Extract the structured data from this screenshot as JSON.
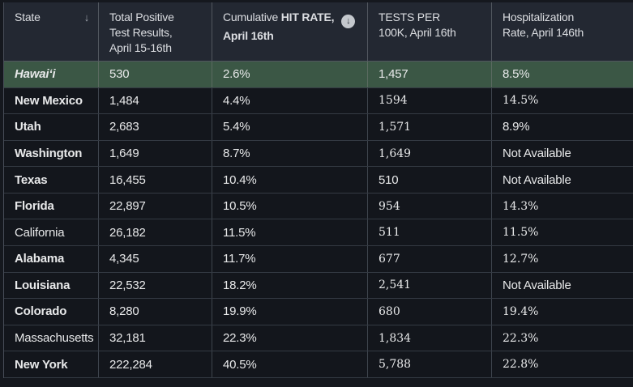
{
  "colors": {
    "page_bg": "#15181e",
    "header_bg": "#232832",
    "row_bg": "#13161c",
    "highlight_row_bg": "#3b5745",
    "header_border": "#51575f",
    "row_border_vertical": "#3e444d",
    "row_border_horizontal": "#343a43",
    "text_primary": "#e8e9ea",
    "header_text": "#dcdee2",
    "sort_arrow_color": "#9aa0a8",
    "circle_icon_bg": "#c4c8cd",
    "circle_icon_arrow": "#262b34"
  },
  "icons": {
    "sort_descending_glyph": "↓",
    "circle_sort_glyph": "↓"
  },
  "table": {
    "columns": [
      {
        "id": "state",
        "lines": [
          [
            {
              "t": "State"
            }
          ]
        ],
        "has_sort_arrow": true
      },
      {
        "id": "total_positive",
        "lines": [
          [
            {
              "t": "Total Positive"
            }
          ],
          [
            {
              "t": "Test Results,"
            }
          ],
          [
            {
              "t": "April 15-16th"
            }
          ]
        ]
      },
      {
        "id": "hit_rate",
        "lines": [
          [
            {
              "t": "Cumulative "
            },
            {
              "t": "HIT RATE,",
              "b": true
            },
            {
              "icon": "circle-arrow-down"
            }
          ],
          [
            {
              "t": "April 16th",
              "b": true
            }
          ]
        ]
      },
      {
        "id": "tests_per_100k",
        "lines": [
          [
            {
              "t": "TESTS PER"
            }
          ],
          [
            {
              "t": "100K, April 16th"
            }
          ]
        ]
      },
      {
        "id": "hospitalization_rate",
        "lines": [
          [
            {
              "t": "Hospitalization"
            }
          ],
          [
            {
              "t": "Rate, April 146th"
            }
          ]
        ]
      }
    ],
    "rows": [
      {
        "state": "Hawaiʻi",
        "state_style": "bold-italic",
        "highlighted": true,
        "cells": [
          {
            "t": "530"
          },
          {
            "t": "2.6%"
          },
          {
            "t": "1,457"
          },
          {
            "t": "8.5%"
          }
        ]
      },
      {
        "state": "New Mexico",
        "state_style": "bold",
        "highlighted": false,
        "cells": [
          {
            "t": "1,484"
          },
          {
            "t": "4.4%"
          },
          {
            "t": "1594",
            "serif": true
          },
          {
            "t": "14.5%",
            "serif": true
          }
        ]
      },
      {
        "state": "Utah",
        "state_style": "bold",
        "highlighted": false,
        "cells": [
          {
            "t": "2,683"
          },
          {
            "t": "5.4%"
          },
          {
            "t": "1,571",
            "serif": true
          },
          {
            "t": "8.9%"
          }
        ]
      },
      {
        "state": "Washington",
        "state_style": "bold",
        "highlighted": false,
        "cells": [
          {
            "t": "1,649"
          },
          {
            "t": "8.7%"
          },
          {
            "t": "1,649",
            "serif": true
          },
          {
            "t": "Not Available"
          }
        ]
      },
      {
        "state": "Texas",
        "state_style": "bold",
        "highlighted": false,
        "cells": [
          {
            "t": "16,455"
          },
          {
            "t": "10.4%"
          },
          {
            "t": "510"
          },
          {
            "t": "Not Available"
          }
        ]
      },
      {
        "state": "Florida",
        "state_style": "bold",
        "highlighted": false,
        "cells": [
          {
            "t": "22,897"
          },
          {
            "t": "10.5%"
          },
          {
            "t": "954",
            "serif": true
          },
          {
            "t": "14.3%",
            "serif": true
          }
        ]
      },
      {
        "state": "California",
        "state_style": "regular",
        "highlighted": false,
        "cells": [
          {
            "t": "26,182"
          },
          {
            "t": "11.5%"
          },
          {
            "t": "511",
            "serif": true
          },
          {
            "t": "11.5%",
            "serif": true
          }
        ]
      },
      {
        "state": "Alabama",
        "state_style": "bold",
        "highlighted": false,
        "cells": [
          {
            "t": "4,345"
          },
          {
            "t": "11.7%"
          },
          {
            "t": "677",
            "serif": true
          },
          {
            "t": "12.7%",
            "serif": true
          }
        ]
      },
      {
        "state": "Louisiana",
        "state_style": "bold",
        "highlighted": false,
        "cells": [
          {
            "t": "22,532"
          },
          {
            "t": "18.2%"
          },
          {
            "t": "2,541",
            "serif": true
          },
          {
            "t": "Not Available"
          }
        ]
      },
      {
        "state": "Colorado",
        "state_style": "bold",
        "highlighted": false,
        "cells": [
          {
            "t": "8,280"
          },
          {
            "t": "19.9%"
          },
          {
            "t": "680",
            "serif": true
          },
          {
            "t": "19.4%",
            "serif": true
          }
        ]
      },
      {
        "state": "Massachusetts",
        "state_style": "regular",
        "highlighted": false,
        "cells": [
          {
            "t": "32,181"
          },
          {
            "t": "22.3%"
          },
          {
            "t": "1,834",
            "serif": true
          },
          {
            "t": "22.3%",
            "serif": true
          }
        ]
      },
      {
        "state": "New York",
        "state_style": "bold",
        "highlighted": false,
        "cells": [
          {
            "t": "222,284"
          },
          {
            "t": "40.5%"
          },
          {
            "t": "5,788",
            "serif": true
          },
          {
            "t": "22.8%",
            "serif": true
          }
        ]
      }
    ]
  }
}
